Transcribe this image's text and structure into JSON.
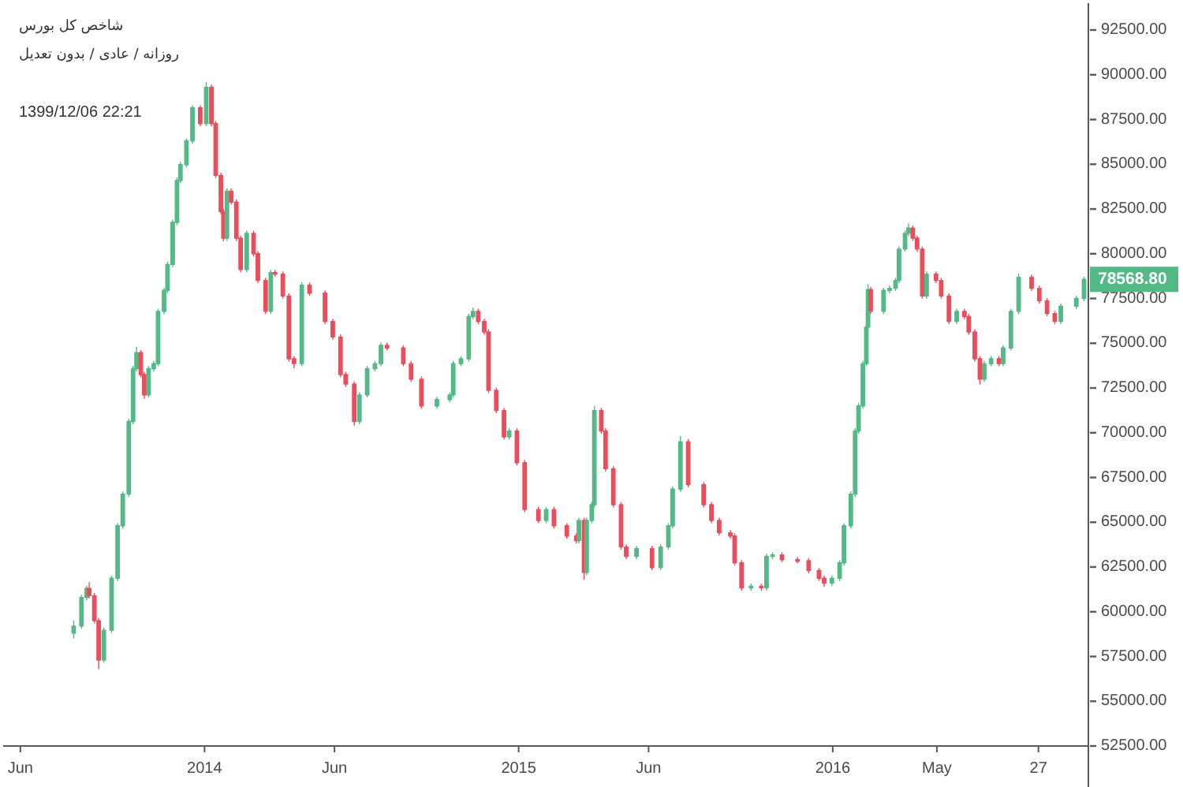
{
  "chart_data": {
    "type": "candlestick",
    "title": "شاخص کل بورس",
    "subtitle": "روزانه / عادی / بدون تعدیل",
    "annotations": [
      "1399/12/06 22:21"
    ],
    "x": [
      "2013-08-02",
      "2013-08-11",
      "2013-08-17",
      "2013-08-20",
      "2013-08-26",
      "2013-08-31",
      "2013-09-06",
      "2013-09-15",
      "2013-09-22",
      "2013-09-28",
      "2013-10-05",
      "2013-10-10",
      "2013-10-14",
      "2013-10-19",
      "2013-10-23",
      "2013-10-28",
      "2013-11-03",
      "2013-11-08",
      "2013-11-15",
      "2013-11-19",
      "2013-11-25",
      "2013-11-30",
      "2013-12-04",
      "2013-12-11",
      "2013-12-18",
      "2013-12-27",
      "2014-01-03",
      "2014-01-09",
      "2014-01-14",
      "2014-01-20",
      "2014-01-23",
      "2014-01-27",
      "2014-02-01",
      "2014-02-07",
      "2014-02-12",
      "2014-02-19",
      "2014-02-27",
      "2014-03-04",
      "2014-03-13",
      "2014-03-19",
      "2014-03-24",
      "2014-04-02",
      "2014-04-09",
      "2014-04-15",
      "2014-04-24",
      "2014-05-03",
      "2014-05-21",
      "2014-05-30",
      "2014-06-08",
      "2014-06-14",
      "2014-06-24",
      "2014-06-30",
      "2014-07-09",
      "2014-07-18",
      "2014-07-25",
      "2014-08-01",
      "2014-08-20",
      "2014-08-29",
      "2014-09-10",
      "2014-09-28",
      "2014-10-13",
      "2014-10-17",
      "2014-10-26",
      "2014-11-04",
      "2014-11-09",
      "2014-11-15",
      "2014-11-22",
      "2014-11-27",
      "2014-12-06",
      "2014-12-15",
      "2014-12-21",
      "2014-12-30",
      "2015-01-08",
      "2015-01-24",
      "2015-02-02",
      "2015-02-11",
      "2015-02-26",
      "2015-03-09",
      "2015-03-12",
      "2015-03-18",
      "2015-03-21",
      "2015-03-27",
      "2015-03-30",
      "2015-04-07",
      "2015-04-12",
      "2015-04-21",
      "2015-04-30",
      "2015-05-06",
      "2015-05-18",
      "2015-06-05",
      "2015-06-15",
      "2015-06-24",
      "2015-06-29",
      "2015-07-08",
      "2015-07-17",
      "2015-08-04",
      "2015-08-13",
      "2015-08-22",
      "2015-09-04",
      "2015-09-09",
      "2015-09-17",
      "2015-09-28",
      "2015-10-10",
      "2015-10-16",
      "2015-10-23",
      "2015-11-03",
      "2015-11-21",
      "2015-12-04",
      "2015-12-16",
      "2015-12-22",
      "2015-12-31",
      "2016-01-09",
      "2016-01-14",
      "2016-01-22",
      "2016-01-27",
      "2016-01-31",
      "2016-02-05",
      "2016-02-09",
      "2016-02-11",
      "2016-02-14",
      "2016-02-29",
      "2016-03-07",
      "2016-03-14",
      "2016-03-18",
      "2016-03-25",
      "2016-03-29",
      "2016-04-03",
      "2016-04-08",
      "2016-04-14",
      "2016-04-19",
      "2016-04-30",
      "2016-05-06",
      "2016-05-15",
      "2016-05-24",
      "2016-06-02",
      "2016-06-07",
      "2016-06-14",
      "2016-06-20",
      "2016-06-25",
      "2016-07-03",
      "2016-07-12",
      "2016-07-17",
      "2016-07-26",
      "2016-08-04",
      "2016-08-19",
      "2016-08-28",
      "2016-09-06",
      "2016-09-15",
      "2016-09-22",
      "2016-10-10",
      "2016-10-19"
    ],
    "ohlc": [
      [
        58800,
        59500,
        58500,
        59200
      ],
      [
        59200,
        60950,
        59050,
        60800
      ],
      [
        60800,
        61450,
        60650,
        61300
      ],
      [
        61300,
        61650,
        60750,
        60900
      ],
      [
        60900,
        61050,
        59350,
        59500
      ],
      [
        59500,
        59650,
        56800,
        57300
      ],
      [
        57300,
        59120,
        57150,
        58970
      ],
      [
        58970,
        62020,
        58820,
        61870
      ],
      [
        61870,
        64950,
        61720,
        64800
      ],
      [
        64800,
        66720,
        64650,
        66570
      ],
      [
        66570,
        70780,
        66420,
        70630
      ],
      [
        70630,
        73730,
        70480,
        73580
      ],
      [
        73580,
        74800,
        73430,
        74470
      ],
      [
        74470,
        74620,
        73100,
        73250
      ],
      [
        73250,
        73400,
        71900,
        72110
      ],
      [
        72110,
        73730,
        71960,
        73580
      ],
      [
        73580,
        74010,
        73430,
        73860
      ],
      [
        73860,
        76930,
        73710,
        76780
      ],
      [
        76780,
        78100,
        76630,
        77950
      ],
      [
        77950,
        79550,
        77800,
        79400
      ],
      [
        79400,
        81900,
        79250,
        81750
      ],
      [
        81750,
        84250,
        81600,
        84100
      ],
      [
        84100,
        85130,
        83950,
        84980
      ],
      [
        84980,
        86450,
        84830,
        86300
      ],
      [
        86300,
        88300,
        86150,
        88150
      ],
      [
        88150,
        88300,
        87120,
        87270
      ],
      [
        87270,
        89600,
        87120,
        89300
      ],
      [
        89300,
        89450,
        87120,
        87270
      ],
      [
        87270,
        87420,
        84230,
        84380
      ],
      [
        84380,
        84530,
        82210,
        82360
      ],
      [
        82360,
        82510,
        80700,
        80870
      ],
      [
        80870,
        83650,
        80720,
        83500
      ],
      [
        83500,
        83650,
        82740,
        82890
      ],
      [
        82890,
        83040,
        80720,
        80870
      ],
      [
        80870,
        81020,
        78970,
        79120
      ],
      [
        79120,
        81290,
        78970,
        81140
      ],
      [
        81140,
        81290,
        79850,
        80000
      ],
      [
        80000,
        80150,
        78360,
        78510
      ],
      [
        78510,
        78660,
        76630,
        76780
      ],
      [
        76780,
        79100,
        76630,
        78950
      ],
      [
        78950,
        79100,
        78710,
        78860
      ],
      [
        78860,
        79010,
        77490,
        77640
      ],
      [
        77640,
        77790,
        73980,
        74130
      ],
      [
        74130,
        74280,
        73600,
        73860
      ],
      [
        73860,
        78390,
        73710,
        78240
      ],
      [
        78240,
        78390,
        77650,
        77800
      ],
      [
        77800,
        77950,
        76070,
        76220
      ],
      [
        76220,
        76370,
        75200,
        75350
      ],
      [
        75350,
        75500,
        73100,
        73250
      ],
      [
        73250,
        73400,
        72570,
        72720
      ],
      [
        72720,
        72870,
        70400,
        70630
      ],
      [
        70630,
        72260,
        70480,
        72110
      ],
      [
        72110,
        73730,
        71960,
        73580
      ],
      [
        73580,
        74010,
        73430,
        73860
      ],
      [
        73860,
        75030,
        73710,
        74880
      ],
      [
        74880,
        75030,
        74590,
        74740
      ],
      [
        74740,
        74890,
        73710,
        73860
      ],
      [
        73860,
        74010,
        72840,
        72990
      ],
      [
        72990,
        73140,
        71350,
        71500
      ],
      [
        71500,
        72000,
        71350,
        71850
      ],
      [
        71850,
        72260,
        71700,
        72110
      ],
      [
        72110,
        74010,
        71960,
        73860
      ],
      [
        73860,
        74280,
        73710,
        74130
      ],
      [
        74130,
        76640,
        73980,
        76490
      ],
      [
        76490,
        77000,
        76340,
        76780
      ],
      [
        76780,
        76930,
        76070,
        76220
      ],
      [
        76220,
        76370,
        75480,
        75630
      ],
      [
        75630,
        75780,
        72220,
        72370
      ],
      [
        72370,
        72520,
        71090,
        71240
      ],
      [
        71240,
        71390,
        69620,
        69770
      ],
      [
        69770,
        70250,
        69620,
        70100
      ],
      [
        70100,
        70250,
        68180,
        68330
      ],
      [
        68330,
        68480,
        65560,
        65710
      ],
      [
        65710,
        65860,
        64950,
        65100
      ],
      [
        65100,
        65860,
        64950,
        65710
      ],
      [
        65710,
        65860,
        64650,
        64800
      ],
      [
        64800,
        64950,
        64080,
        64230
      ],
      [
        64230,
        64380,
        63820,
        63970
      ],
      [
        63970,
        65250,
        63820,
        65100
      ],
      [
        65100,
        65250,
        61780,
        62200
      ],
      [
        62200,
        65250,
        62050,
        65100
      ],
      [
        65100,
        66130,
        64950,
        65980
      ],
      [
        65980,
        71500,
        65830,
        71240
      ],
      [
        71240,
        71390,
        69950,
        70100
      ],
      [
        70100,
        70250,
        67840,
        67990
      ],
      [
        67990,
        68140,
        65830,
        65980
      ],
      [
        65980,
        66130,
        63470,
        63620
      ],
      [
        63620,
        63770,
        62940,
        63090
      ],
      [
        63090,
        63680,
        62940,
        63530
      ],
      [
        63530,
        63680,
        62320,
        62470
      ],
      [
        62470,
        63770,
        62320,
        63620
      ],
      [
        63620,
        64950,
        63470,
        64800
      ],
      [
        64800,
        67000,
        64650,
        66850
      ],
      [
        66850,
        69800,
        66700,
        69500
      ],
      [
        69500,
        69650,
        66950,
        67100
      ],
      [
        67100,
        67250,
        65830,
        65980
      ],
      [
        65980,
        66130,
        64950,
        65100
      ],
      [
        65100,
        65250,
        64260,
        64410
      ],
      [
        64410,
        64560,
        64080,
        64230
      ],
      [
        64230,
        64380,
        62580,
        62730
      ],
      [
        62730,
        62880,
        61180,
        61330
      ],
      [
        61330,
        61570,
        61180,
        61420
      ],
      [
        61420,
        61570,
        61180,
        61330
      ],
      [
        61330,
        63240,
        61180,
        63090
      ],
      [
        63090,
        63330,
        62940,
        63180
      ],
      [
        63180,
        63330,
        62760,
        62910
      ],
      [
        62910,
        63060,
        62700,
        62850
      ],
      [
        62850,
        63000,
        62150,
        62300
      ],
      [
        62300,
        62450,
        61720,
        61870
      ],
      [
        61870,
        62020,
        61400,
        61600
      ],
      [
        61600,
        62020,
        61450,
        61870
      ],
      [
        61870,
        62880,
        61720,
        62730
      ],
      [
        62730,
        64950,
        62580,
        64800
      ],
      [
        64800,
        66720,
        64650,
        66570
      ],
      [
        66570,
        70250,
        66420,
        70100
      ],
      [
        70100,
        71650,
        69950,
        71500
      ],
      [
        71500,
        74010,
        71350,
        73860
      ],
      [
        73860,
        76050,
        73710,
        75900
      ],
      [
        75900,
        78300,
        75750,
        78000
      ],
      [
        78000,
        78150,
        76630,
        76780
      ],
      [
        76780,
        78100,
        76630,
        77950
      ],
      [
        77950,
        78220,
        77800,
        78070
      ],
      [
        78070,
        78660,
        77920,
        78510
      ],
      [
        78510,
        80410,
        78360,
        80260
      ],
      [
        80260,
        81290,
        80110,
        81140
      ],
      [
        81140,
        81700,
        80990,
        81430
      ],
      [
        81430,
        81580,
        80720,
        80870
      ],
      [
        80870,
        81020,
        80110,
        80260
      ],
      [
        80260,
        80410,
        77490,
        77640
      ],
      [
        77640,
        79010,
        77490,
        78860
      ],
      [
        78860,
        79010,
        78360,
        78510
      ],
      [
        78510,
        78660,
        77490,
        77640
      ],
      [
        77640,
        77790,
        76070,
        76220
      ],
      [
        76220,
        76930,
        76070,
        76780
      ],
      [
        76780,
        76930,
        76340,
        76490
      ],
      [
        76490,
        76640,
        75480,
        75630
      ],
      [
        75630,
        75780,
        73980,
        74130
      ],
      [
        74130,
        74280,
        72700,
        72990
      ],
      [
        72990,
        74010,
        72840,
        73860
      ],
      [
        73860,
        74280,
        73710,
        74130
      ],
      [
        74130,
        74280,
        73710,
        73860
      ],
      [
        73860,
        74890,
        73710,
        74740
      ],
      [
        74740,
        76930,
        74590,
        76780
      ],
      [
        76780,
        78900,
        76630,
        78680
      ],
      [
        78680,
        78830,
        77920,
        78070
      ],
      [
        78070,
        78220,
        77220,
        77370
      ],
      [
        77370,
        77520,
        76510,
        76660
      ],
      [
        76660,
        76810,
        76070,
        76220
      ],
      [
        76220,
        77220,
        76070,
        77070
      ],
      [
        77070,
        77650,
        76920,
        77500
      ],
      [
        77500,
        78720,
        77350,
        78568.8
      ]
    ],
    "colors": [
      "#53b987",
      "#53b987",
      "#53b987",
      "#eb4d5c",
      "#eb4d5c",
      "#eb4d5c",
      "#53b987",
      "#53b987",
      "#53b987",
      "#53b987",
      "#53b987",
      "#53b987",
      "#53b987",
      "#eb4d5c",
      "#eb4d5c",
      "#53b987",
      "#53b987",
      "#53b987",
      "#53b987",
      "#53b987",
      "#53b987",
      "#53b987",
      "#53b987",
      "#53b987",
      "#53b987",
      "#eb4d5c",
      "#53b987",
      "#eb4d5c",
      "#eb4d5c",
      "#eb4d5c",
      "#eb4d5c",
      "#53b987",
      "#eb4d5c",
      "#eb4d5c",
      "#eb4d5c",
      "#53b987",
      "#eb4d5c",
      "#eb4d5c",
      "#eb4d5c",
      "#53b987",
      "#eb4d5c",
      "#eb4d5c",
      "#eb4d5c",
      "#eb4d5c",
      "#53b987",
      "#eb4d5c",
      "#eb4d5c",
      "#eb4d5c",
      "#eb4d5c",
      "#eb4d5c",
      "#eb4d5c",
      "#53b987",
      "#53b987",
      "#53b987",
      "#53b987",
      "#eb4d5c",
      "#eb4d5c",
      "#eb4d5c",
      "#eb4d5c",
      "#53b987",
      "#53b987",
      "#53b987",
      "#53b987",
      "#53b987",
      "#53b987",
      "#eb4d5c",
      "#eb4d5c",
      "#eb4d5c",
      "#eb4d5c",
      "#eb4d5c",
      "#53b987",
      "#eb4d5c",
      "#eb4d5c",
      "#eb4d5c",
      "#53b987",
      "#eb4d5c",
      "#eb4d5c",
      "#eb4d5c",
      "#53b987",
      "#eb4d5c",
      "#53b987",
      "#53b987",
      "#53b987",
      "#eb4d5c",
      "#eb4d5c",
      "#eb4d5c",
      "#eb4d5c",
      "#eb4d5c",
      "#53b987",
      "#eb4d5c",
      "#53b987",
      "#53b987",
      "#53b987",
      "#53b987",
      "#eb4d5c",
      "#eb4d5c",
      "#eb4d5c",
      "#eb4d5c",
      "#eb4d5c",
      "#eb4d5c",
      "#eb4d5c",
      "#53b987",
      "#eb4d5c",
      "#53b987",
      "#53b987",
      "#eb4d5c",
      "#eb4d5c",
      "#eb4d5c",
      "#eb4d5c",
      "#eb4d5c",
      "#53b987",
      "#53b987",
      "#53b987",
      "#53b987",
      "#53b987",
      "#53b987",
      "#53b987",
      "#53b987",
      "#53b987",
      "#eb4d5c",
      "#53b987",
      "#53b987",
      "#53b987",
      "#53b987",
      "#53b987",
      "#53b987",
      "#eb4d5c",
      "#eb4d5c",
      "#eb4d5c",
      "#53b987",
      "#eb4d5c",
      "#eb4d5c",
      "#eb4d5c",
      "#53b987",
      "#eb4d5c",
      "#eb4d5c",
      "#eb4d5c",
      "#eb4d5c",
      "#53b987",
      "#53b987",
      "#eb4d5c",
      "#53b987",
      "#53b987",
      "#53b987",
      "#eb4d5c",
      "#eb4d5c",
      "#eb4d5c",
      "#eb4d5c",
      "#53b987",
      "#53b987",
      "#53b987"
    ],
    "value_labels": [
      null,
      null,
      null,
      null,
      null,
      null,
      null,
      null,
      null,
      null,
      null,
      null,
      null,
      null,
      null,
      null,
      null,
      null,
      null,
      null,
      null,
      null,
      null,
      null,
      null,
      null,
      null,
      null,
      null,
      null,
      null,
      null,
      null,
      null,
      null,
      null,
      null,
      null,
      null,
      null,
      null,
      null,
      null,
      null,
      null,
      null,
      null,
      null,
      null,
      null,
      null,
      null,
      null,
      null,
      null,
      null,
      null,
      null,
      null,
      null,
      null,
      null,
      null,
      null,
      null,
      null,
      null,
      null,
      null,
      null,
      null,
      null,
      null,
      null,
      null,
      null,
      null,
      null,
      null,
      null,
      null,
      null,
      null,
      null,
      null,
      null,
      null,
      null,
      null,
      null,
      null,
      null,
      null,
      null,
      null,
      null,
      null,
      null,
      null,
      null,
      null,
      null,
      null,
      null,
      null,
      null,
      null,
      null,
      null,
      null,
      null,
      null,
      null,
      null,
      null,
      null,
      null,
      null,
      null,
      null,
      null,
      null,
      null,
      null,
      null,
      null,
      null,
      null,
      null,
      null,
      null,
      null,
      null,
      null,
      null,
      null,
      null,
      null,
      null,
      null,
      null,
      null,
      null,
      null,
      null,
      null,
      null,
      null,
      null,
      null,
      "78568.80"
    ],
    "xlim": [
      "2013-05-12",
      "2016-10-24"
    ],
    "xticks": [
      {
        "value": "2013-06-01",
        "label": "Jun"
      },
      {
        "value": "2014-01-01",
        "label": "2014"
      },
      {
        "value": "2014-06-01",
        "label": "Jun"
      },
      {
        "value": "2015-01-01",
        "label": "2015"
      },
      {
        "value": "2015-06-01",
        "label": "Jun"
      },
      {
        "value": "2016-01-01",
        "label": "2016"
      },
      {
        "value": "2016-05-01",
        "label": "May"
      },
      {
        "value": "2016-08-27",
        "label": "27"
      }
    ],
    "ylim": [
      52500,
      94000
    ],
    "yticks": [
      {
        "value": 52500,
        "label": "52500.00"
      },
      {
        "value": 55000,
        "label": "55000.00"
      },
      {
        "value": 57500,
        "label": "57500.00"
      },
      {
        "value": 60000,
        "label": "60000.00"
      },
      {
        "value": 62500,
        "label": "62500.00"
      },
      {
        "value": 65000,
        "label": "65000.00"
      },
      {
        "value": 67500,
        "label": "67500.00"
      },
      {
        "value": 70000,
        "label": "70000.00"
      },
      {
        "value": 72500,
        "label": "72500.00"
      },
      {
        "value": 75000,
        "label": "75000.00"
      },
      {
        "value": 77500,
        "label": "77500.00"
      },
      {
        "value": 80000,
        "label": "80000.00"
      },
      {
        "value": 82500,
        "label": "82500.00"
      },
      {
        "value": 85000,
        "label": "85000.00"
      },
      {
        "value": 87500,
        "label": "87500.00"
      },
      {
        "value": 90000,
        "label": "90000.00"
      },
      {
        "value": 92500,
        "label": "92500.00"
      }
    ]
  }
}
